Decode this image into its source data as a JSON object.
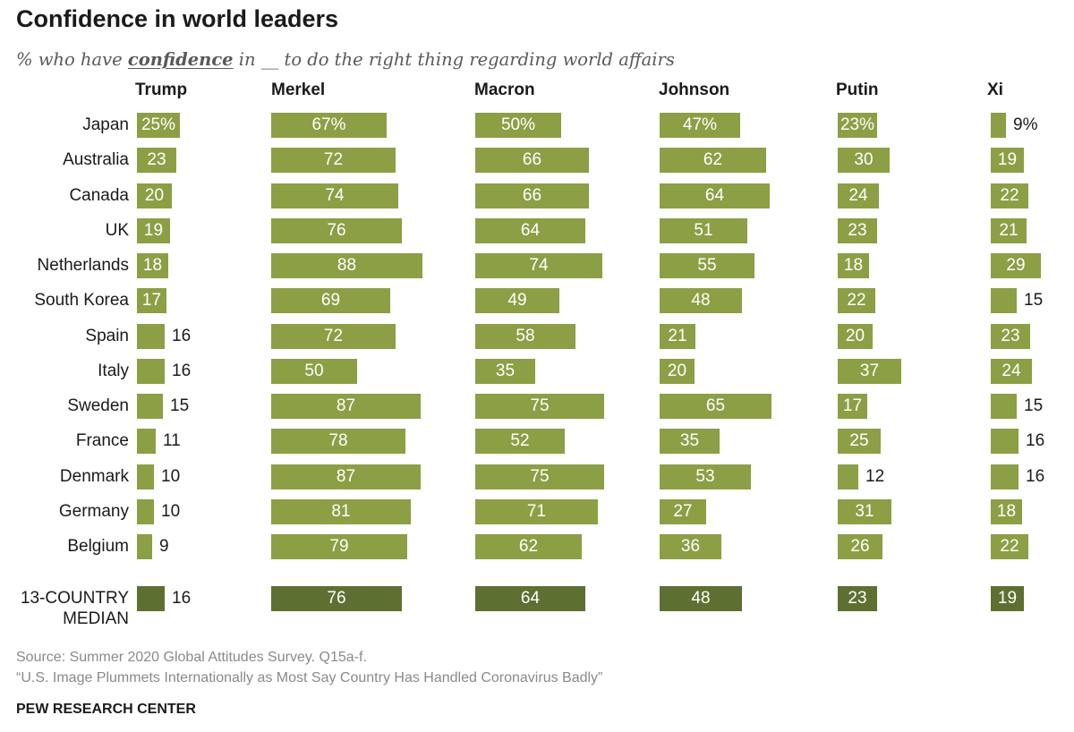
{
  "title": "Confidence in world leaders",
  "subtitle": {
    "prefix": "% who have ",
    "emphasis": "confidence",
    "suffix": " in __ to do the right thing regarding world affairs"
  },
  "source": "Source: Summer 2020 Global Attitudes Survey. Q15a-f.",
  "note": "“U.S. Image Plummets Internationally as Most Say Country Has Handled Coronavirus Badly”",
  "logo": "PEW RESEARCH CENTER",
  "colors": {
    "bar": "#8c9f45",
    "median_bar": "#5d7031",
    "label_inside": "#ffffff",
    "label_outside": "#1a1a1a"
  },
  "chart_data": {
    "type": "bar",
    "orientation": "horizontal",
    "unit": "%",
    "categories": [
      "Japan",
      "Australia",
      "Canada",
      "UK",
      "Netherlands",
      "South Korea",
      "Spain",
      "Italy",
      "Sweden",
      "France",
      "Denmark",
      "Germany",
      "Belgium"
    ],
    "median_label": [
      "13-COUNTRY",
      "MEDIAN"
    ],
    "series": [
      {
        "name": "Trump",
        "values": [
          25,
          23,
          20,
          19,
          18,
          17,
          16,
          16,
          15,
          11,
          10,
          10,
          9
        ],
        "median": 16
      },
      {
        "name": "Merkel",
        "values": [
          67,
          72,
          74,
          76,
          88,
          69,
          72,
          50,
          87,
          78,
          87,
          81,
          79
        ],
        "median": 76
      },
      {
        "name": "Macron",
        "values": [
          50,
          66,
          66,
          64,
          74,
          49,
          58,
          35,
          75,
          52,
          75,
          71,
          62
        ],
        "median": 64
      },
      {
        "name": "Johnson",
        "values": [
          47,
          62,
          64,
          51,
          55,
          48,
          21,
          20,
          65,
          35,
          53,
          27,
          36
        ],
        "median": 48
      },
      {
        "name": "Putin",
        "values": [
          23,
          30,
          24,
          23,
          18,
          22,
          20,
          37,
          17,
          25,
          12,
          31,
          26
        ],
        "median": 23
      },
      {
        "name": "Xi",
        "values": [
          9,
          19,
          22,
          21,
          29,
          15,
          23,
          24,
          15,
          16,
          16,
          18,
          22
        ],
        "median": 19
      }
    ]
  }
}
